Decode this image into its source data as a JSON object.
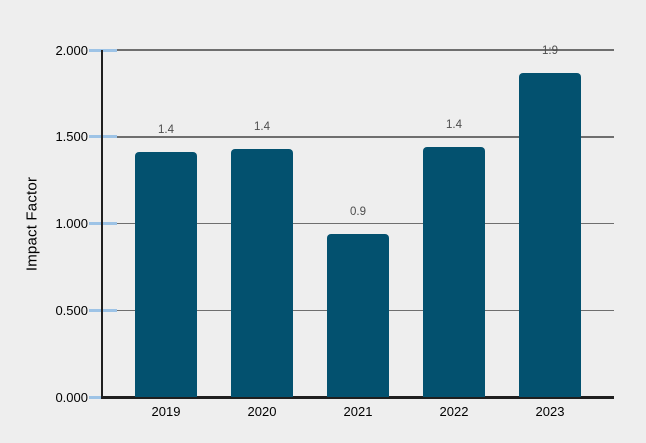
{
  "chart_data": {
    "type": "bar",
    "title": "",
    "ylabel": "Impact Factor",
    "xlabel": "",
    "categories": [
      "2019",
      "2020",
      "2021",
      "2022",
      "2023"
    ],
    "values": [
      1.41,
      1.43,
      0.94,
      1.44,
      1.87
    ],
    "bar_labels": [
      "1.4",
      "1.4",
      "0.9",
      "1.4",
      "1:9"
    ],
    "ytick_values": [
      0,
      0.5,
      1,
      1.5,
      2
    ],
    "ytick_labels": [
      "0.000",
      "0.500",
      "1.000",
      "1.500",
      "2.000"
    ],
    "ylim": [
      0,
      2
    ],
    "grid": true,
    "legend": false
  },
  "colors": {
    "background": "#eeeeee",
    "bar": "#03516f",
    "gridline": "#6e6e6e",
    "axis_line": "#1f1f1f",
    "tick_mark": "#9dc3e6",
    "bar_label_text": "#4d4d4d",
    "axis_text": "#000000"
  }
}
